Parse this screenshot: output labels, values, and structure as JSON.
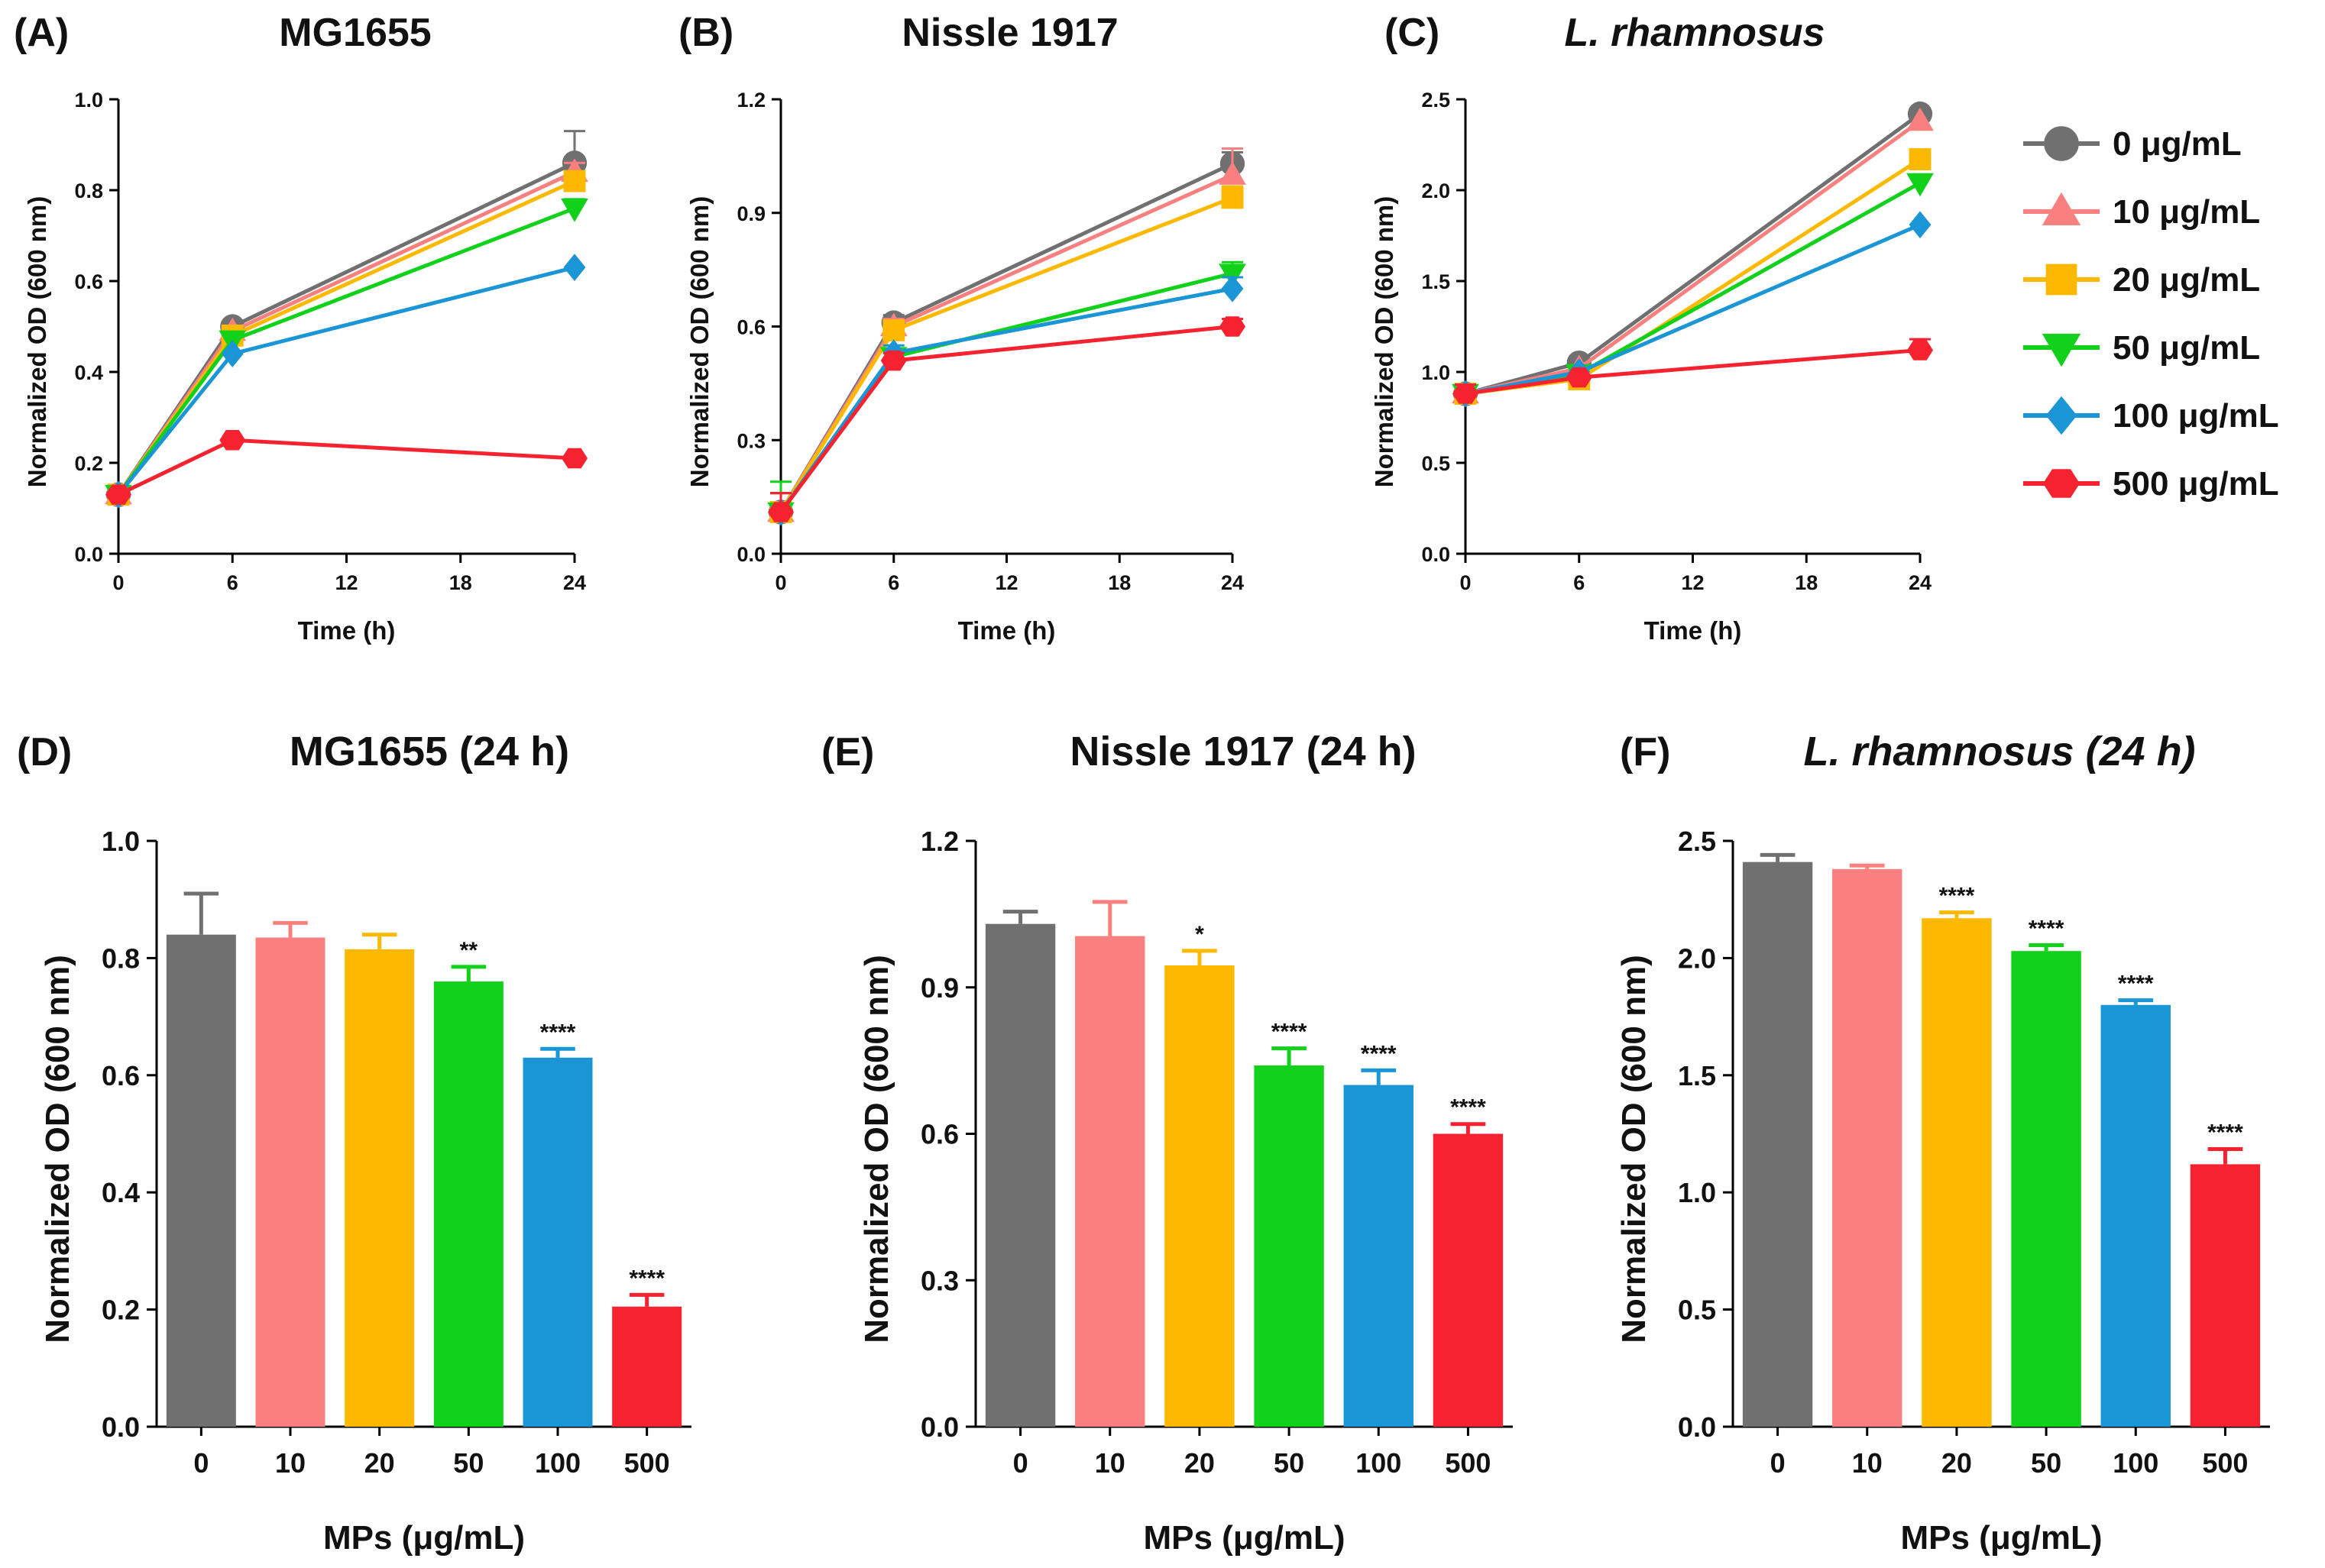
{
  "legend": {
    "items": [
      {
        "label": "0 μg/mL",
        "color": "#707070",
        "marker": "circle"
      },
      {
        "label": "10 μg/mL",
        "color": "#fa8080",
        "marker": "triangle-up"
      },
      {
        "label": "20 μg/mL",
        "color": "#fcb900",
        "marker": "square"
      },
      {
        "label": "50 μg/mL",
        "color": "#11d11a",
        "marker": "triangle-down"
      },
      {
        "label": "100 μg/mL",
        "color": "#1a95d6",
        "marker": "diamond"
      },
      {
        "label": "500 μg/mL",
        "color": "#f7222f",
        "marker": "hexagon"
      }
    ]
  },
  "chart_data": [
    {
      "panel": "(A)",
      "type": "line",
      "title": "MG1655",
      "title_italic": false,
      "xlabel": "Time (h)",
      "ylabel": "Normalized OD (600 nm)",
      "x": [
        0,
        6,
        24
      ],
      "xticks": [
        0,
        6,
        12,
        18,
        24
      ],
      "xlim": [
        0,
        24
      ],
      "ylim": [
        0,
        1.0
      ],
      "yticks": [
        "0.0",
        "0.2",
        "0.4",
        "0.6",
        "0.8",
        "1.0"
      ],
      "series": [
        {
          "name": "0 μg/mL",
          "values": [
            0.13,
            0.5,
            0.86
          ],
          "error": [
            0.01,
            0.01,
            0.07
          ]
        },
        {
          "name": "10 μg/mL",
          "values": [
            0.13,
            0.49,
            0.84
          ],
          "error": [
            0.01,
            0.01,
            0.02
          ]
        },
        {
          "name": "20 μg/mL",
          "values": [
            0.13,
            0.48,
            0.82
          ],
          "error": [
            0.01,
            0.01,
            0.02
          ]
        },
        {
          "name": "50 μg/mL",
          "values": [
            0.13,
            0.47,
            0.76
          ],
          "error": [
            0.01,
            0.01,
            0.02
          ]
        },
        {
          "name": "100 μg/mL",
          "values": [
            0.13,
            0.44,
            0.63
          ],
          "error": [
            0.01,
            0.01,
            0.01
          ]
        },
        {
          "name": "500 μg/mL",
          "values": [
            0.13,
            0.25,
            0.21
          ],
          "error": [
            0.01,
            0.01,
            0.01
          ]
        }
      ]
    },
    {
      "panel": "(B)",
      "type": "line",
      "title": "Nissle 1917",
      "title_italic": false,
      "xlabel": "Time (h)",
      "ylabel": "Normalized OD (600 nm)",
      "x": [
        0,
        6,
        24
      ],
      "xticks": [
        0,
        6,
        12,
        18,
        24
      ],
      "xlim": [
        0,
        24
      ],
      "ylim": [
        0,
        1.2
      ],
      "yticks": [
        "0.0",
        "0.3",
        "0.6",
        "0.9",
        "1.2"
      ],
      "series": [
        {
          "name": "0 μg/mL",
          "values": [
            0.11,
            0.61,
            1.03
          ],
          "error": [
            0.05,
            0.02,
            0.03
          ]
        },
        {
          "name": "10 μg/mL",
          "values": [
            0.11,
            0.6,
            1.0
          ],
          "error": [
            0.05,
            0.02,
            0.07
          ]
        },
        {
          "name": "20 μg/mL",
          "values": [
            0.11,
            0.59,
            0.94
          ],
          "error": [
            0.05,
            0.02,
            0.03
          ]
        },
        {
          "name": "50 μg/mL",
          "values": [
            0.11,
            0.52,
            0.74
          ],
          "error": [
            0.08,
            0.02,
            0.03
          ]
        },
        {
          "name": "100 μg/mL",
          "values": [
            0.11,
            0.53,
            0.7
          ],
          "error": [
            0.05,
            0.02,
            0.03
          ]
        },
        {
          "name": "500 μg/mL",
          "values": [
            0.11,
            0.51,
            0.6
          ],
          "error": [
            0.05,
            0.02,
            0.02
          ]
        }
      ]
    },
    {
      "panel": "(C)",
      "type": "line",
      "title": "L. rhamnosus",
      "title_italic": true,
      "xlabel": "Time (h)",
      "ylabel": "Normalized OD (600 nm)",
      "x": [
        0,
        6,
        24
      ],
      "xticks": [
        0,
        6,
        12,
        18,
        24
      ],
      "xlim": [
        0,
        24
      ],
      "ylim": [
        0,
        2.5
      ],
      "yticks": [
        "0.0",
        "0.5",
        "1.0",
        "1.5",
        "2.0",
        "2.5"
      ],
      "series": [
        {
          "name": "0 μg/mL",
          "values": [
            0.88,
            1.05,
            2.42
          ],
          "error": [
            0.05,
            0.02,
            0.02
          ]
        },
        {
          "name": "10 μg/mL",
          "values": [
            0.88,
            1.02,
            2.38
          ],
          "error": [
            0.05,
            0.02,
            0.02
          ]
        },
        {
          "name": "20 μg/mL",
          "values": [
            0.88,
            0.96,
            2.17
          ],
          "error": [
            0.05,
            0.02,
            0.02
          ]
        },
        {
          "name": "50 μg/mL",
          "values": [
            0.88,
            0.99,
            2.04
          ],
          "error": [
            0.05,
            0.02,
            0.02
          ]
        },
        {
          "name": "100 μg/mL",
          "values": [
            0.88,
            1.0,
            1.81
          ],
          "error": [
            0.05,
            0.02,
            0.02
          ]
        },
        {
          "name": "500 μg/mL",
          "values": [
            0.88,
            0.97,
            1.12
          ],
          "error": [
            0.05,
            0.02,
            0.06
          ]
        }
      ]
    },
    {
      "panel": "(D)",
      "type": "bar",
      "title": "MG1655 (24 h)",
      "title_italic": false,
      "xlabel": "MPs (μg/mL)",
      "ylabel": "Normalized OD (600 nm)",
      "categories": [
        "0",
        "10",
        "20",
        "50",
        "100",
        "500"
      ],
      "values": [
        0.84,
        0.835,
        0.815,
        0.76,
        0.63,
        0.205
      ],
      "errors": [
        0.07,
        0.025,
        0.025,
        0.025,
        0.015,
        0.02
      ],
      "significance": [
        "",
        "",
        "",
        "**",
        "****",
        "****"
      ],
      "ylim": [
        0,
        1.0
      ],
      "yticks": [
        "0.0",
        "0.2",
        "0.4",
        "0.6",
        "0.8",
        "1.0"
      ]
    },
    {
      "panel": "(E)",
      "type": "bar",
      "title": "Nissle 1917 (24 h)",
      "title_italic": false,
      "xlabel": "MPs (μg/mL)",
      "ylabel": "Normalized OD (600 nm)",
      "categories": [
        "0",
        "10",
        "20",
        "50",
        "100",
        "500"
      ],
      "values": [
        1.03,
        1.005,
        0.945,
        0.74,
        0.7,
        0.6
      ],
      "errors": [
        0.025,
        0.07,
        0.03,
        0.035,
        0.03,
        0.02
      ],
      "significance": [
        "",
        "",
        "*",
        "****",
        "****",
        "****"
      ],
      "ylim": [
        0,
        1.2
      ],
      "yticks": [
        "0.0",
        "0.3",
        "0.6",
        "0.9",
        "1.2"
      ]
    },
    {
      "panel": "(F)",
      "type": "bar",
      "title": "L. rhamnosus (24 h)",
      "title_italic": true,
      "xlabel": "MPs (μg/mL)",
      "ylabel": "Normalized OD (600 nm)",
      "categories": [
        "0",
        "10",
        "20",
        "50",
        "100",
        "500"
      ],
      "values": [
        2.41,
        2.38,
        2.17,
        2.03,
        1.8,
        1.12
      ],
      "errors": [
        0.03,
        0.015,
        0.025,
        0.025,
        0.02,
        0.065
      ],
      "significance": [
        "",
        "",
        "****",
        "****",
        "****",
        "****"
      ],
      "ylim": [
        0,
        2.5
      ],
      "yticks": [
        "0.0",
        "0.5",
        "1.0",
        "1.5",
        "2.0",
        "2.5"
      ]
    }
  ]
}
